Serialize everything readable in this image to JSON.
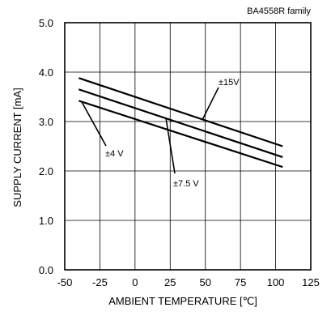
{
  "chart_data": {
    "type": "line",
    "title": "BA4558R  family",
    "xlabel": "AMBIENT TEMPERATURE [℃]",
    "ylabel": "SUPPLY CURRENT [mA]",
    "xlim": [
      -50,
      125
    ],
    "ylim": [
      0.0,
      5.0
    ],
    "x_ticks": [
      "-50",
      "-25",
      "0",
      "25",
      "50",
      "75",
      "100",
      "125"
    ],
    "y_ticks": [
      "0.0",
      "1.0",
      "2.0",
      "3.0",
      "4.0",
      "5.0"
    ],
    "grid": true,
    "series": [
      {
        "name": "±15V",
        "x": [
          -40,
          105
        ],
        "values": [
          3.88,
          2.5
        ]
      },
      {
        "name": "±7.5 V",
        "x": [
          -40,
          105
        ],
        "values": [
          3.65,
          2.28
        ]
      },
      {
        "name": "±4 V",
        "x": [
          -40,
          105
        ],
        "values": [
          3.42,
          2.08
        ]
      }
    ]
  }
}
